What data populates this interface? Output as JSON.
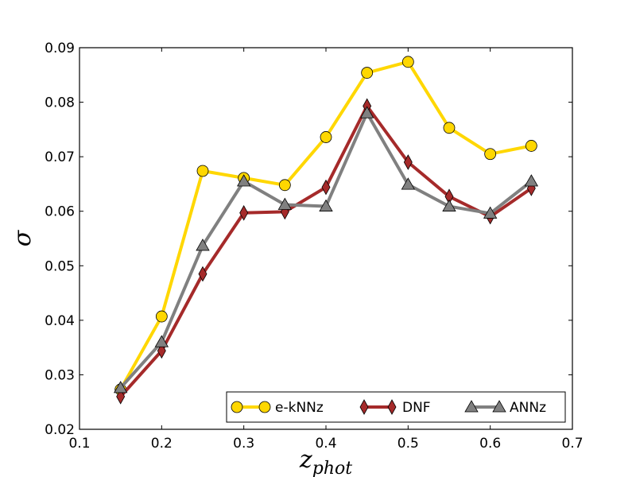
{
  "chart_data": {
    "type": "line",
    "title": "",
    "xlabel": "z",
    "xlabel_sub": "phot",
    "ylabel": "σ",
    "xlim": [
      0.1,
      0.7
    ],
    "ylim": [
      0.02,
      0.09
    ],
    "xticks": [
      0.1,
      0.2,
      0.3,
      0.4,
      0.5,
      0.6,
      0.7
    ],
    "xtick_labels": [
      "0.1",
      "0.2",
      "0.3",
      "0.4",
      "0.5",
      "0.6",
      "0.7"
    ],
    "yticks": [
      0.02,
      0.03,
      0.04,
      0.05,
      0.06,
      0.07,
      0.08,
      0.09
    ],
    "ytick_labels": [
      "0.02",
      "0.03",
      "0.04",
      "0.05",
      "0.06",
      "0.07",
      "0.08",
      "0.09"
    ],
    "grid": false,
    "legend_position": "lower-right",
    "x": [
      0.15,
      0.2,
      0.25,
      0.3,
      0.35,
      0.4,
      0.45,
      0.5,
      0.55,
      0.6,
      0.65
    ],
    "series": [
      {
        "name": "e-kNNz",
        "color": "#FFD700",
        "marker": "circle",
        "values": [
          0.0273,
          0.0407,
          0.0674,
          0.0661,
          0.0648,
          0.0736,
          0.0854,
          0.0874,
          0.0753,
          0.0705,
          0.072
        ]
      },
      {
        "name": "DNF",
        "color": "#A52A2A",
        "marker": "thin-diamond",
        "values": [
          0.026,
          0.0344,
          0.0485,
          0.0597,
          0.0599,
          0.0644,
          0.0793,
          0.069,
          0.0627,
          0.059,
          0.0642
        ]
      },
      {
        "name": "ANNz",
        "color": "#808080",
        "marker": "triangle",
        "values": [
          0.0276,
          0.036,
          0.0537,
          0.0655,
          0.0612,
          0.0609,
          0.078,
          0.0649,
          0.0609,
          0.0596,
          0.0655
        ]
      }
    ]
  }
}
